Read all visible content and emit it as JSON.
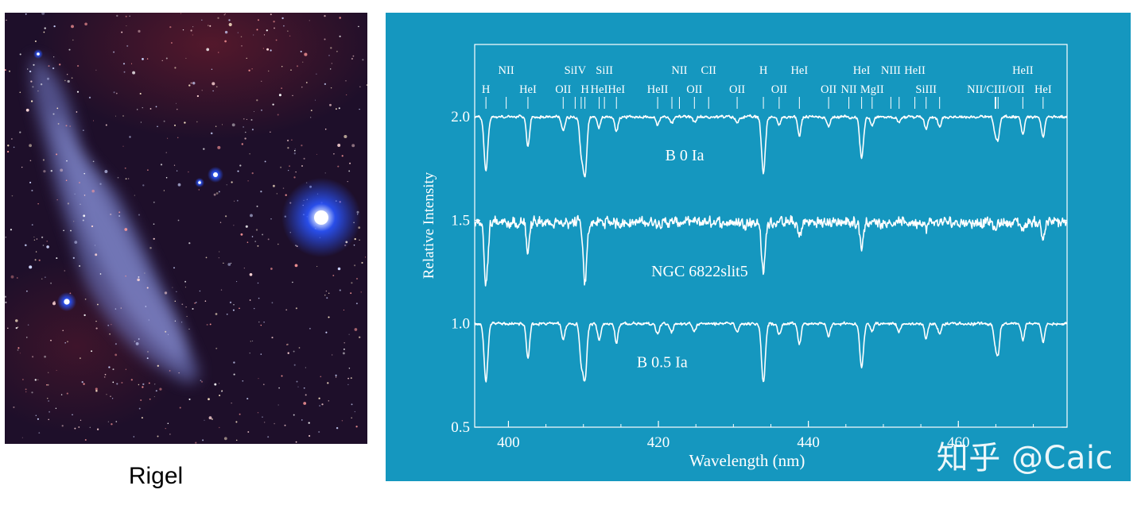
{
  "photo": {
    "caption": "Rigel",
    "colors": {
      "sky": "#1e0f2a",
      "nebula": "#7a84d6",
      "star": "#2a55ff"
    }
  },
  "watermark": "知乎 @Caic",
  "colors": {
    "panel": "#1597bf",
    "ink": "#ffffff"
  },
  "chart_data": {
    "type": "line",
    "xlabel": "Wavelength (nm)",
    "ylabel": "Relative Intensity",
    "xlim": [
      395.5,
      474.5
    ],
    "ylim": [
      0.5,
      2.35
    ],
    "x_ticks": [
      400,
      420,
      440,
      460
    ],
    "y_ticks": [
      "0.5",
      "1.0",
      "1.5",
      "2.0"
    ],
    "grid": false,
    "line_ids": {
      "row1": [
        {
          "label": "NII",
          "x": 399.7
        },
        {
          "label": "SiIV",
          "x": 408.9
        },
        {
          "label": "SiII",
          "x": 412.8
        },
        {
          "label": "NII",
          "x": 422.8
        },
        {
          "label": "CII",
          "x": 426.7
        },
        {
          "label": "H",
          "x": 434.0
        },
        {
          "label": "HeI",
          "x": 438.8
        },
        {
          "label": "HeI",
          "x": 447.1
        },
        {
          "label": "NIII",
          "x": 451.0
        },
        {
          "label": "HeII",
          "x": 454.2
        },
        {
          "label": "HeII",
          "x": 468.6
        }
      ],
      "row2": [
        {
          "label": "H",
          "x": 397.0
        },
        {
          "label": "HeI",
          "x": 402.6
        },
        {
          "label": "OII",
          "x": 407.3
        },
        {
          "label": "H",
          "x": 410.2
        },
        {
          "label": "HeI",
          "x": 412.1
        },
        {
          "label": "HeI",
          "x": 414.4
        },
        {
          "label": "HeII",
          "x": 419.9
        },
        {
          "label": "OII",
          "x": 424.8
        },
        {
          "label": "OII",
          "x": 430.5
        },
        {
          "label": "OII",
          "x": 436.1
        },
        {
          "label": "OII",
          "x": 442.7
        },
        {
          "label": "NII",
          "x": 445.4
        },
        {
          "label": "MgII",
          "x": 448.5
        },
        {
          "label": "SiIII",
          "x": 455.7
        },
        {
          "label": "NII/CIII/OII",
          "x": 465.0
        },
        {
          "label": "HeI",
          "x": 471.3
        }
      ]
    },
    "series": [
      {
        "name": "B 0 Ia",
        "continuum": 2.0,
        "noise": 0.008,
        "label_pos": [
          423.5,
          1.79
        ],
        "lines": [
          [
            397.0,
            0.26,
            0.35
          ],
          [
            402.6,
            0.14,
            0.3
          ],
          [
            407.3,
            0.07,
            0.3
          ],
          [
            409.7,
            0.16,
            0.3
          ],
          [
            410.2,
            0.28,
            0.35
          ],
          [
            412.1,
            0.05,
            0.3
          ],
          [
            414.4,
            0.07,
            0.3
          ],
          [
            419.9,
            0.04,
            0.3
          ],
          [
            421.8,
            0.03,
            0.3
          ],
          [
            424.8,
            0.03,
            0.3
          ],
          [
            430.5,
            0.03,
            0.3
          ],
          [
            434.0,
            0.27,
            0.35
          ],
          [
            436.1,
            0.04,
            0.3
          ],
          [
            438.8,
            0.09,
            0.3
          ],
          [
            442.7,
            0.05,
            0.3
          ],
          [
            447.1,
            0.2,
            0.35
          ],
          [
            448.5,
            0.04,
            0.3
          ],
          [
            452.1,
            0.03,
            0.3
          ],
          [
            455.7,
            0.06,
            0.3
          ],
          [
            457.5,
            0.05,
            0.3
          ],
          [
            464.9,
            0.07,
            0.3
          ],
          [
            465.3,
            0.1,
            0.3
          ],
          [
            468.6,
            0.08,
            0.3
          ],
          [
            471.3,
            0.1,
            0.3
          ]
        ]
      },
      {
        "name": "NGC 6822slit5",
        "continuum": 1.49,
        "noise": 0.03,
        "label_pos": [
          425.5,
          1.23
        ],
        "lines": [
          [
            397.0,
            0.3,
            0.35
          ],
          [
            402.6,
            0.13,
            0.3
          ],
          [
            410.2,
            0.3,
            0.35
          ],
          [
            434.0,
            0.24,
            0.35
          ],
          [
            438.8,
            0.07,
            0.3
          ],
          [
            447.1,
            0.12,
            0.3
          ],
          [
            455.7,
            0.03,
            0.3
          ],
          [
            464.9,
            0.04,
            0.3
          ],
          [
            468.6,
            0.04,
            0.3
          ],
          [
            471.3,
            0.07,
            0.3
          ]
        ]
      },
      {
        "name": "B 0.5 Ia",
        "continuum": 1.0,
        "noise": 0.008,
        "label_pos": [
          420.5,
          0.79
        ],
        "lines": [
          [
            397.0,
            0.28,
            0.35
          ],
          [
            402.6,
            0.17,
            0.3
          ],
          [
            407.3,
            0.08,
            0.3
          ],
          [
            409.7,
            0.17,
            0.3
          ],
          [
            410.2,
            0.27,
            0.35
          ],
          [
            412.1,
            0.08,
            0.3
          ],
          [
            414.4,
            0.09,
            0.3
          ],
          [
            419.9,
            0.05,
            0.3
          ],
          [
            421.8,
            0.04,
            0.3
          ],
          [
            424.8,
            0.04,
            0.3
          ],
          [
            430.5,
            0.04,
            0.3
          ],
          [
            434.0,
            0.29,
            0.35
          ],
          [
            436.1,
            0.05,
            0.3
          ],
          [
            438.8,
            0.1,
            0.3
          ],
          [
            442.7,
            0.06,
            0.3
          ],
          [
            447.1,
            0.21,
            0.35
          ],
          [
            448.5,
            0.04,
            0.3
          ],
          [
            452.1,
            0.04,
            0.3
          ],
          [
            455.7,
            0.07,
            0.3
          ],
          [
            457.5,
            0.05,
            0.3
          ],
          [
            464.9,
            0.09,
            0.3
          ],
          [
            465.3,
            0.14,
            0.3
          ],
          [
            468.6,
            0.08,
            0.3
          ],
          [
            471.3,
            0.09,
            0.3
          ]
        ]
      }
    ]
  }
}
